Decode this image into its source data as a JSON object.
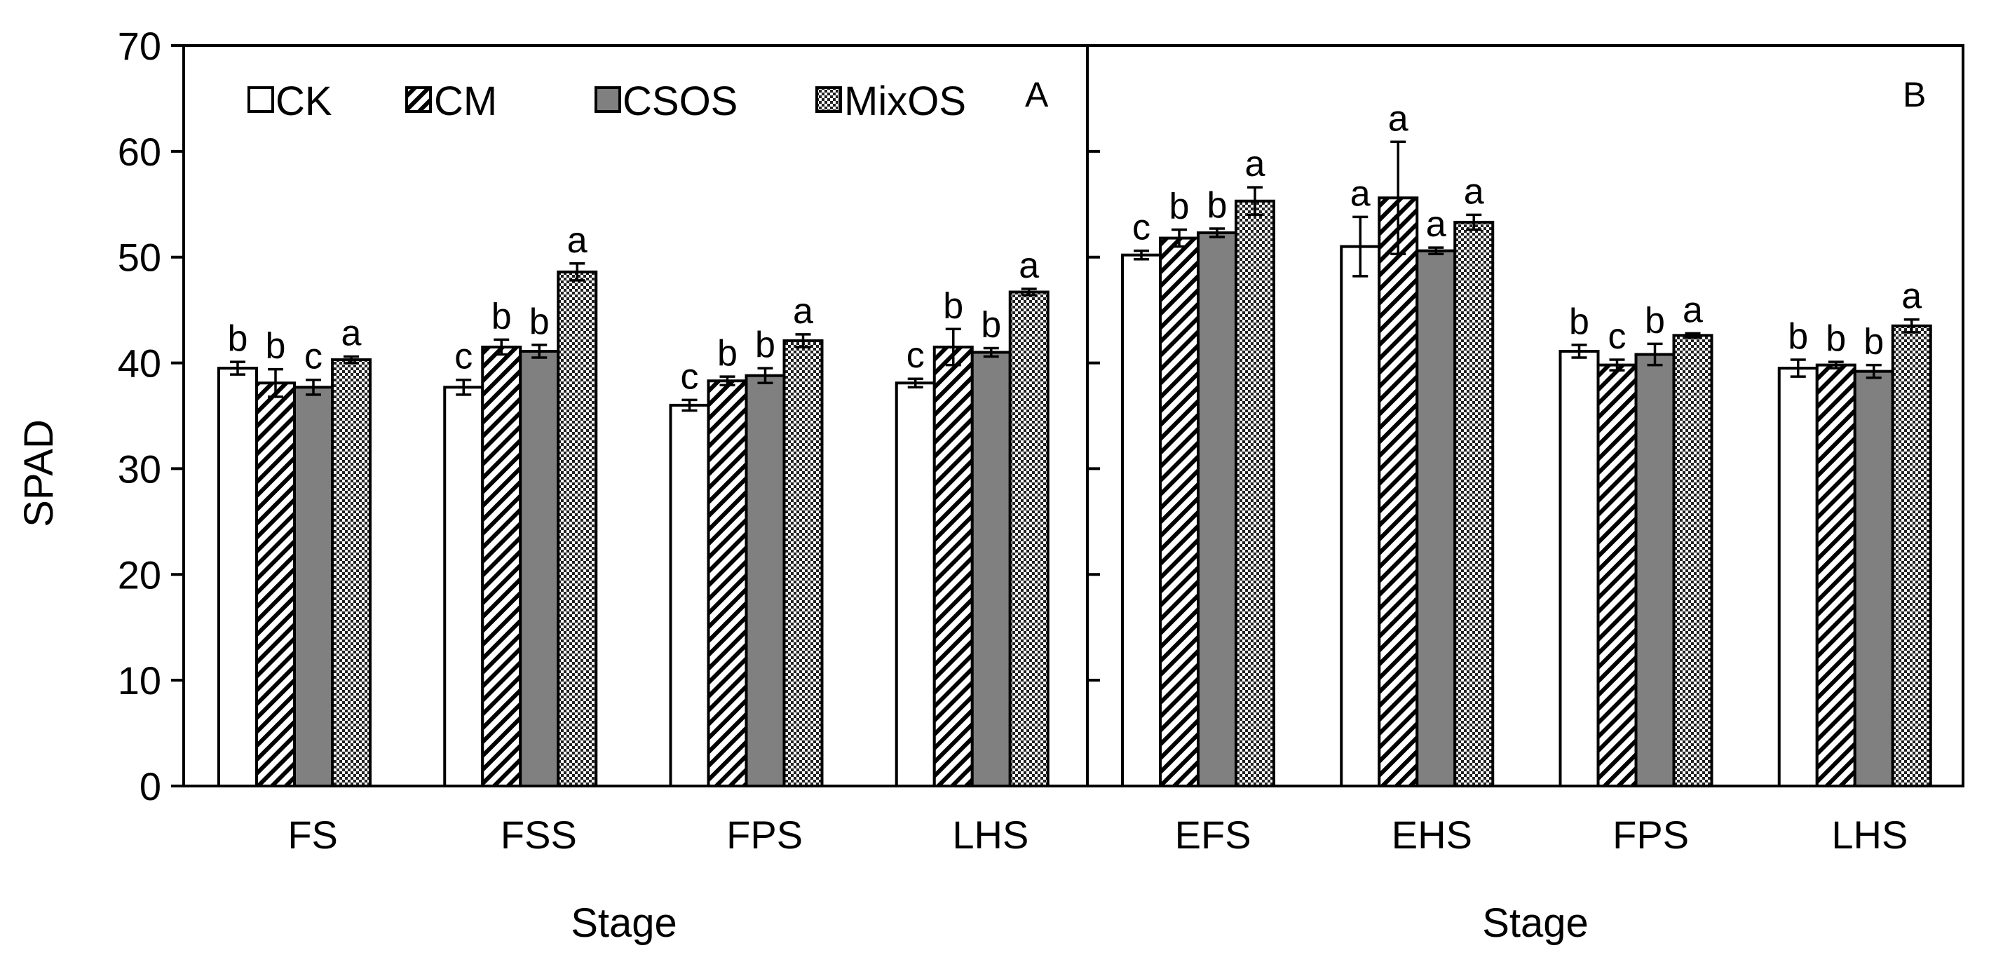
{
  "chart_data": [
    {
      "type": "bar",
      "panel": "A",
      "categories": [
        "FS",
        "FSS",
        "FPS",
        "LHS"
      ],
      "xlabel": "Stage",
      "ylabel": "SPAD",
      "ylim": [
        0,
        70
      ],
      "yticks": [
        0,
        10,
        20,
        30,
        40,
        50,
        60,
        70
      ],
      "series": [
        {
          "name": "CK",
          "values": [
            39.5,
            37.7,
            36.0,
            38.1
          ],
          "errors": [
            0.6,
            0.7,
            0.5,
            0.4
          ],
          "labels": [
            "b",
            "c",
            "c",
            "c"
          ]
        },
        {
          "name": "CM",
          "values": [
            38.1,
            41.5,
            38.3,
            41.5
          ],
          "errors": [
            1.3,
            0.7,
            0.4,
            1.7
          ],
          "labels": [
            "b",
            "b",
            "b",
            "b"
          ]
        },
        {
          "name": "CSOS",
          "values": [
            37.7,
            41.1,
            38.8,
            41.0
          ],
          "errors": [
            0.7,
            0.6,
            0.7,
            0.4
          ],
          "labels": [
            "c",
            "b",
            "b",
            "b"
          ]
        },
        {
          "name": "MixOS",
          "values": [
            40.3,
            48.6,
            42.1,
            46.7
          ],
          "errors": [
            0.3,
            0.8,
            0.6,
            0.3
          ],
          "labels": [
            "a",
            "a",
            "a",
            "a"
          ]
        }
      ]
    },
    {
      "type": "bar",
      "panel": "B",
      "categories": [
        "EFS",
        "EHS",
        "FPS",
        "LHS"
      ],
      "xlabel": "Stage",
      "ylabel": "SPAD",
      "ylim": [
        0,
        70
      ],
      "yticks": [
        0,
        10,
        20,
        30,
        40,
        50,
        60,
        70
      ],
      "series": [
        {
          "name": "CK",
          "values": [
            50.2,
            51.0,
            41.1,
            39.5
          ],
          "errors": [
            0.4,
            2.8,
            0.6,
            0.8
          ],
          "labels": [
            "c",
            "a",
            "b",
            "b"
          ]
        },
        {
          "name": "CM",
          "values": [
            51.8,
            55.6,
            39.8,
            39.8
          ],
          "errors": [
            0.8,
            5.3,
            0.5,
            0.3
          ],
          "labels": [
            "b",
            "a",
            "c",
            "b"
          ]
        },
        {
          "name": "CSOS",
          "values": [
            52.3,
            50.6,
            40.8,
            39.2
          ],
          "errors": [
            0.4,
            0.3,
            1.0,
            0.6
          ],
          "labels": [
            "b",
            "a",
            "b",
            "b"
          ]
        },
        {
          "name": "MixOS",
          "values": [
            55.3,
            53.3,
            42.6,
            43.5
          ],
          "errors": [
            1.3,
            0.7,
            0.2,
            0.6
          ],
          "labels": [
            "a",
            "a",
            "a",
            "a"
          ]
        }
      ]
    }
  ],
  "legend": [
    "CK",
    "CM",
    "CSOS",
    "MixOS"
  ]
}
